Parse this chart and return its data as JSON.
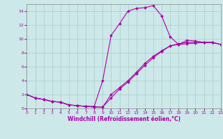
{
  "xlabel": "Windchill (Refroidissement éolien,°C)",
  "bg_color": "#cce8e8",
  "line_color": "#aa00aa",
  "grid_color": "#aacccc",
  "xmin": 0,
  "xmax": 23,
  "ymin": 0,
  "ymax": 15,
  "xticks": [
    0,
    1,
    2,
    3,
    4,
    5,
    6,
    7,
    8,
    9,
    10,
    11,
    12,
    13,
    14,
    15,
    16,
    17,
    18,
    19,
    20,
    21,
    22,
    23
  ],
  "yticks": [
    0,
    2,
    4,
    6,
    8,
    10,
    12,
    14
  ],
  "series1_x": [
    0,
    1,
    2,
    3,
    4,
    5,
    6,
    7,
    8,
    9,
    10,
    11,
    12,
    13,
    14,
    15,
    16,
    17,
    18,
    19,
    20,
    21,
    22,
    23
  ],
  "series1_y": [
    2.0,
    1.5,
    1.3,
    1.0,
    0.9,
    0.5,
    0.4,
    0.3,
    0.3,
    4.0,
    10.5,
    12.2,
    14.0,
    14.4,
    14.5,
    14.8,
    13.3,
    10.3,
    9.2,
    9.8,
    9.7,
    9.5,
    9.5,
    9.2
  ],
  "series2_x": [
    0,
    1,
    2,
    3,
    4,
    5,
    6,
    7,
    8,
    9,
    10,
    11,
    12,
    13,
    14,
    15,
    16,
    17,
    18,
    19,
    20,
    21,
    22,
    23
  ],
  "series2_y": [
    2.0,
    1.5,
    1.3,
    1.0,
    0.9,
    0.5,
    0.4,
    0.3,
    0.2,
    0.2,
    2.0,
    3.0,
    4.0,
    5.2,
    6.5,
    7.5,
    8.3,
    9.0,
    9.3,
    9.5,
    9.5,
    9.5,
    9.5,
    9.2
  ],
  "series3_x": [
    0,
    1,
    2,
    3,
    4,
    5,
    6,
    7,
    8,
    9,
    10,
    11,
    12,
    13,
    14,
    15,
    16,
    17,
    18,
    19,
    20,
    21,
    22,
    23
  ],
  "series3_y": [
    2.0,
    1.5,
    1.3,
    1.0,
    0.9,
    0.5,
    0.4,
    0.3,
    0.2,
    0.2,
    1.5,
    2.8,
    3.8,
    5.0,
    6.2,
    7.3,
    8.2,
    9.0,
    9.2,
    9.3,
    9.4,
    9.5,
    9.5,
    9.2
  ],
  "tick_fontsize": 4.5,
  "xlabel_fontsize": 5.5,
  "marker_size": 2.0,
  "linewidth": 0.8
}
